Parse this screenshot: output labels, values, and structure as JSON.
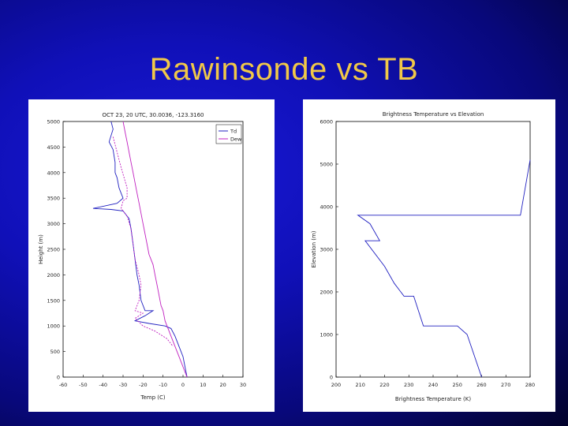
{
  "slide": {
    "title": "Rawinsonde vs TB"
  },
  "colors": {
    "background": "#1010b8",
    "title": "#f0c848",
    "series_blue": "#2020c0",
    "series_magenta": "#c020c0"
  },
  "chart_data": [
    {
      "type": "line",
      "title": "OCT 23, 20 UTC, 30.0036, -123.3160",
      "xlabel": "Temp (C)",
      "ylabel": "Height (m)",
      "xlim": [
        -60,
        30
      ],
      "ylim": [
        0,
        5000
      ],
      "xticks": [
        -60,
        -50,
        -40,
        -30,
        -20,
        -10,
        0,
        10,
        20,
        30
      ],
      "yticks": [
        0,
        500,
        1000,
        1500,
        2000,
        2500,
        3000,
        3500,
        4000,
        4500,
        5000
      ],
      "grid": false,
      "legend": {
        "placement": "top-right",
        "entries": [
          "Td",
          "Dew"
        ]
      },
      "series": [
        {
          "name": "Td",
          "color": "#2020c0",
          "points": [
            [
              -36,
              5000
            ],
            [
              -35,
              4850
            ],
            [
              -37,
              4600
            ],
            [
              -35,
              4450
            ],
            [
              -34,
              4200
            ],
            [
              -34,
              4000
            ],
            [
              -33,
              3900
            ],
            [
              -32,
              3700
            ],
            [
              -30,
              3500
            ],
            [
              -33,
              3400
            ],
            [
              -45,
              3300
            ],
            [
              -36,
              3280
            ],
            [
              -30,
              3250
            ],
            [
              -27,
              3100
            ],
            [
              -26,
              2900
            ],
            [
              -25,
              2600
            ],
            [
              -24,
              2300
            ],
            [
              -23,
              2000
            ],
            [
              -22,
              1800
            ],
            [
              -21,
              1500
            ],
            [
              -19,
              1300
            ],
            [
              -15,
              1300
            ],
            [
              -19,
              1200
            ],
            [
              -24,
              1100
            ],
            [
              -17,
              1050
            ],
            [
              -9,
              1000
            ],
            [
              -6,
              950
            ],
            [
              -4,
              800
            ],
            [
              -2,
              600
            ],
            [
              0,
              400
            ],
            [
              1,
              200
            ],
            [
              2,
              0
            ]
          ]
        },
        {
          "name": "Dew",
          "color": "#c020c0",
          "points": [
            [
              -30,
              5000
            ],
            [
              -29,
              4800
            ],
            [
              -28,
              4600
            ],
            [
              -27,
              4400
            ],
            [
              -26,
              4200
            ],
            [
              -25,
              4000
            ],
            [
              -24,
              3800
            ],
            [
              -23,
              3600
            ],
            [
              -22,
              3400
            ],
            [
              -21,
              3200
            ],
            [
              -20,
              3000
            ],
            [
              -19,
              2800
            ],
            [
              -18,
              2600
            ],
            [
              -17,
              2400
            ],
            [
              -15,
              2200
            ],
            [
              -14,
              2000
            ],
            [
              -13,
              1800
            ],
            [
              -12,
              1600
            ],
            [
              -11,
              1400
            ],
            [
              -10,
              1300
            ],
            [
              -9,
              1100
            ],
            [
              -7,
              900
            ],
            [
              -5,
              700
            ],
            [
              -3,
              500
            ],
            [
              -1,
              300
            ],
            [
              1,
              100
            ],
            [
              2,
              0
            ]
          ]
        },
        {
          "name": "",
          "color": "#c020c0",
          "points": [
            [
              -35,
              4700
            ],
            [
              -33,
              4400
            ],
            [
              -31,
              4100
            ],
            [
              -28,
              3700
            ],
            [
              -28,
              3500
            ],
            [
              -30,
              3450
            ],
            [
              -31,
              3300
            ],
            [
              -28,
              3150
            ],
            [
              -26,
              2900
            ],
            [
              -25,
              2600
            ],
            [
              -24,
              2300
            ],
            [
              -22,
              2000
            ],
            [
              -21,
              1800
            ],
            [
              -22,
              1500
            ],
            [
              -24,
              1300
            ],
            [
              -20,
              1250
            ],
            [
              -24,
              1150
            ],
            [
              -20,
              1000
            ],
            [
              -14,
              900
            ],
            [
              -8,
              750
            ],
            [
              -5,
              600
            ]
          ]
        }
      ]
    },
    {
      "type": "line",
      "title": "Brightness Temperature vs Elevation",
      "xlabel": "Brightness Temperature (K)",
      "ylabel": "Elevation (m)",
      "xlim": [
        200,
        280
      ],
      "ylim": [
        0,
        6000
      ],
      "xticks": [
        200,
        210,
        220,
        230,
        240,
        250,
        260,
        270,
        280
      ],
      "yticks": [
        0,
        1000,
        2000,
        3000,
        4000,
        5000,
        6000
      ],
      "grid": false,
      "series": [
        {
          "name": "",
          "color": "#2020c0",
          "points": [
            [
              260,
              0
            ],
            [
              254,
              1000
            ],
            [
              250,
              1200
            ],
            [
              248,
              1200
            ],
            [
              236,
              1200
            ],
            [
              232,
              1900
            ],
            [
              228,
              1900
            ],
            [
              224,
              2200
            ],
            [
              220,
              2600
            ],
            [
              212,
              3200
            ],
            [
              218,
              3200
            ],
            [
              214,
              3600
            ],
            [
              209,
              3800
            ],
            [
              276,
              3800
            ],
            [
              280,
              5100
            ]
          ]
        }
      ]
    }
  ]
}
